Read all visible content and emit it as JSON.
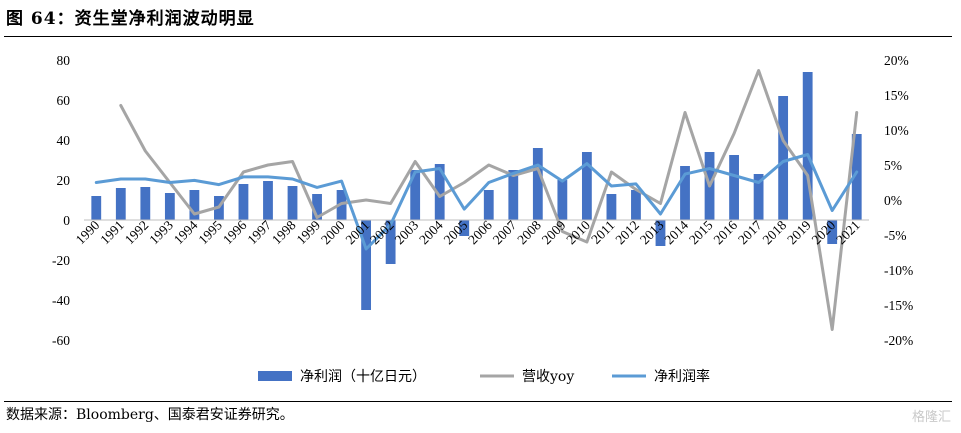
{
  "header": {
    "title": "图 64：资生堂净利润波动明显"
  },
  "footer": {
    "source": "数据来源：Bloomberg、国泰君安证券研究。",
    "watermark": "格隆汇"
  },
  "colors": {
    "bar": "#4472c4",
    "revenue_yoy": "#a5a5a5",
    "net_margin": "#5b9bd5"
  },
  "chart_data": {
    "type": "bar",
    "title": "",
    "categories": [
      "1990",
      "1991",
      "1992",
      "1993",
      "1994",
      "1995",
      "1996",
      "1997",
      "1998",
      "1999",
      "2000",
      "2001",
      "2002",
      "2003",
      "2004",
      "2005",
      "2006",
      "2007",
      "2008",
      "2009",
      "2010",
      "2011",
      "2012",
      "2013",
      "2014",
      "2015",
      "2016",
      "2017",
      "2018",
      "2019",
      "2020",
      "2021"
    ],
    "series": [
      {
        "name": "净利润（十亿日元）",
        "type": "bar",
        "axis": "left",
        "values": [
          12,
          16,
          16.5,
          13.5,
          15,
          12,
          18,
          19.5,
          17,
          13,
          15,
          -45,
          -22,
          25,
          28,
          -8,
          15,
          25,
          36,
          20,
          34,
          13,
          15,
          -13,
          27,
          34,
          32.5,
          23,
          62,
          74,
          -12,
          43
        ]
      },
      {
        "name": "营收yoy",
        "type": "line",
        "axis": "right",
        "values": [
          null,
          13.5,
          7,
          2.5,
          -2,
          -1,
          4,
          5,
          5.5,
          -2.5,
          -0.5,
          0,
          -0.5,
          5.5,
          0.5,
          2.5,
          5,
          3.5,
          4.5,
          -4.5,
          -6,
          4,
          1.5,
          -0.5,
          12.5,
          2,
          9.5,
          18.5,
          8.5,
          3.5,
          -18.5,
          12.5
        ]
      },
      {
        "name": "净利润率",
        "type": "line",
        "axis": "right",
        "values": [
          2.5,
          3,
          3,
          2.5,
          2.8,
          2.2,
          3.3,
          3.3,
          3,
          1.8,
          2.7,
          -7,
          -3.5,
          4,
          4.5,
          -1.3,
          2.5,
          3.8,
          5,
          2.7,
          5.2,
          2,
          2.3,
          -2,
          3.7,
          4.5,
          3.5,
          2.5,
          5.5,
          6.5,
          -1.5,
          4
        ]
      }
    ],
    "left_axis": {
      "min": -60,
      "max": 80,
      "step": 20,
      "ticks": [
        "-60",
        "-40",
        "-20",
        "0",
        "20",
        "40",
        "60",
        "80"
      ]
    },
    "right_axis": {
      "min": -20,
      "max": 20,
      "step": 5,
      "ticks": [
        "-20%",
        "-15%",
        "-10%",
        "-5%",
        "0%",
        "5%",
        "10%",
        "15%",
        "20%"
      ]
    },
    "grid": false,
    "legend": {
      "position": "bottom",
      "items": [
        {
          "label": "净利润（十亿日元）",
          "kind": "bar"
        },
        {
          "label": "营收yoy",
          "kind": "line-gray"
        },
        {
          "label": "净利润率",
          "kind": "line-blue"
        }
      ]
    }
  }
}
